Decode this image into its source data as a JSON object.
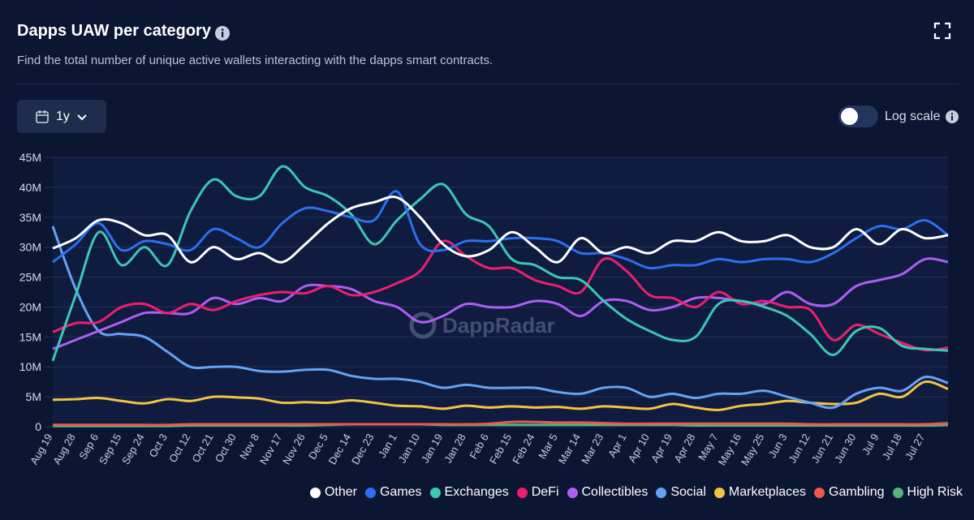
{
  "chart_data": {
    "type": "line",
    "title": "Dapps UAW per category",
    "subtitle": "Find the total number of unique active wallets interacting with the dapps smart contracts.",
    "watermark": "DappRadar",
    "categories": [
      "Aug 19",
      "Aug 28",
      "Sep 6",
      "Sep 15",
      "Sep 24",
      "Oct 3",
      "Oct 12",
      "Oct 21",
      "Oct 30",
      "Nov 8",
      "Nov 17",
      "Nov 26",
      "Dec 5",
      "Dec 14",
      "Dec 23",
      "Jan 1",
      "Jan 10",
      "Jan 19",
      "Jan 28",
      "Feb 6",
      "Feb 15",
      "Feb 24",
      "Mar 5",
      "Mar 14",
      "Mar 23",
      "Apr 1",
      "Apr 10",
      "Apr 19",
      "Apr 28",
      "May 7",
      "May 16",
      "May 25",
      "Jun 3",
      "Jun 12",
      "Jun 21",
      "Jun 30",
      "Jul 9",
      "Jul 18",
      "Jul 27",
      null
    ],
    "series": [
      {
        "name": "Other",
        "color": "#ffffff",
        "values": [
          29.8,
          31.5,
          34.5,
          34,
          32,
          32,
          27.5,
          30,
          28,
          29,
          27.5,
          30.5,
          34,
          36.5,
          37.5,
          38.3,
          35,
          30.5,
          28.5,
          29.5,
          32.5,
          30,
          27.5,
          31.5,
          29,
          30,
          29,
          31,
          31,
          32.5,
          31,
          31,
          32,
          30,
          30,
          33,
          30.5,
          33,
          31.5,
          32
        ]
      },
      {
        "name": "Games",
        "color": "#2b6ff2",
        "values": [
          27.5,
          30.5,
          34,
          29.5,
          31,
          30.5,
          29.5,
          33,
          31.5,
          30,
          34,
          36.5,
          36,
          35,
          34.5,
          39.3,
          30.5,
          29.5,
          31,
          31,
          31.5,
          31.5,
          31,
          29,
          29,
          28,
          26.5,
          27,
          27,
          28,
          27.5,
          28,
          28,
          27.5,
          29,
          31.5,
          33.5,
          33,
          34.5,
          32
        ]
      },
      {
        "name": "Exchanges",
        "color": "#3cc8b4",
        "values": [
          11,
          22,
          32.5,
          27,
          30,
          27,
          36,
          41.3,
          38.5,
          38.5,
          43.5,
          40,
          38.5,
          35.5,
          30.5,
          34.5,
          38,
          40.5,
          35.5,
          33.5,
          28,
          27,
          25,
          24.5,
          21,
          18,
          16,
          14.5,
          15,
          20.5,
          21,
          20,
          18.5,
          15.5,
          12,
          16,
          16.5,
          13.5,
          13,
          12.7
        ]
      },
      {
        "name": "DeFi",
        "color": "#ec1f6f",
        "values": [
          15.8,
          17.3,
          17.5,
          20,
          20.5,
          19,
          20.5,
          19.5,
          21,
          22,
          22.5,
          22.3,
          23.5,
          22,
          22.5,
          24,
          26,
          31,
          28.5,
          26.5,
          26.5,
          24.5,
          23.5,
          22.5,
          28,
          26,
          22,
          21.5,
          20,
          22.5,
          20.5,
          21,
          20,
          19.5,
          14.5,
          17,
          15.5,
          14,
          12.8,
          13.2
        ]
      },
      {
        "name": "Collectibles",
        "color": "#b05cf5",
        "values": [
          13,
          14.5,
          16,
          17.5,
          19,
          19,
          19,
          21.5,
          20.5,
          21.5,
          21,
          23.5,
          23.5,
          23,
          21,
          20,
          17.5,
          18.5,
          20.5,
          20,
          20,
          21,
          20.5,
          18.5,
          21,
          21,
          19.5,
          20,
          21.5,
          21.5,
          21,
          20.5,
          22.5,
          20.5,
          20.5,
          23.5,
          24.5,
          25.5,
          28,
          27.5
        ]
      },
      {
        "name": "Social",
        "color": "#64a3f5",
        "values": [
          33.5,
          23,
          16,
          15.5,
          15,
          12.5,
          10,
          10,
          10,
          9.3,
          9.2,
          9.5,
          9.5,
          8.5,
          8,
          8,
          7.5,
          6.5,
          7,
          6.5,
          6.5,
          6.5,
          5.8,
          5.5,
          6.5,
          6.5,
          5,
          5.5,
          4.8,
          5.5,
          5.5,
          6,
          5,
          4,
          3.2,
          5.5,
          6.5,
          6,
          8.3,
          7.3
        ]
      },
      {
        "name": "Marketplaces",
        "color": "#f5c242",
        "values": [
          4.5,
          4.6,
          4.8,
          4.3,
          3.9,
          4.6,
          4.3,
          5,
          4.9,
          4.7,
          4,
          4.1,
          4,
          4.4,
          4,
          3.5,
          3.4,
          3,
          3.5,
          3.2,
          3.4,
          3.2,
          3.3,
          3,
          3.4,
          3.2,
          3,
          3.8,
          3.2,
          2.8,
          3.5,
          3.8,
          4.3,
          4,
          3.8,
          4,
          5.5,
          5,
          7.5,
          6.3
        ]
      },
      {
        "name": "Gambling",
        "color": "#ea5a4e",
        "values": [
          0.3,
          0.3,
          0.3,
          0.3,
          0.3,
          0.3,
          0.4,
          0.4,
          0.4,
          0.4,
          0.4,
          0.4,
          0.4,
          0.4,
          0.4,
          0.4,
          0.4,
          0.4,
          0.4,
          0.5,
          0.8,
          0.8,
          0.7,
          0.7,
          0.6,
          0.5,
          0.5,
          0.5,
          0.5,
          0.5,
          0.5,
          0.5,
          0.5,
          0.4,
          0.4,
          0.4,
          0.4,
          0.4,
          0.4,
          0.6
        ]
      },
      {
        "name": "High Risk",
        "color": "#52b57a",
        "values": [
          0.1,
          0.1,
          0.1,
          0.1,
          0.1,
          0.1,
          0.2,
          0.2,
          0.2,
          0.2,
          0.2,
          0.2,
          0.3,
          0.4,
          0.4,
          0.4,
          0.4,
          0.3,
          0.3,
          0.3,
          0.3,
          0.3,
          0.3,
          0.3,
          0.3,
          0.3,
          0.3,
          0.3,
          0.2,
          0.2,
          0.2,
          0.2,
          0.2,
          0.2,
          0.2,
          0.2,
          0.2,
          0.2,
          0.2,
          0.3
        ]
      }
    ],
    "ylim": [
      0,
      45
    ],
    "yticks": [
      0,
      {
        "value": 5,
        "label": "5M"
      },
      {
        "value": 10,
        "label": "10M"
      },
      {
        "value": 15,
        "label": "15M"
      },
      {
        "value": 20,
        "label": "20M"
      },
      {
        "value": 25,
        "label": "25M"
      },
      {
        "value": 30,
        "label": "30M"
      },
      {
        "value": 35,
        "label": "35M"
      },
      {
        "value": 40,
        "label": "40M"
      },
      {
        "value": 45,
        "label": "45M"
      }
    ],
    "grid": true,
    "log_scale": false,
    "legend": "bottom-right"
  },
  "controls": {
    "range": "1y",
    "log_scale_label": "Log scale"
  }
}
